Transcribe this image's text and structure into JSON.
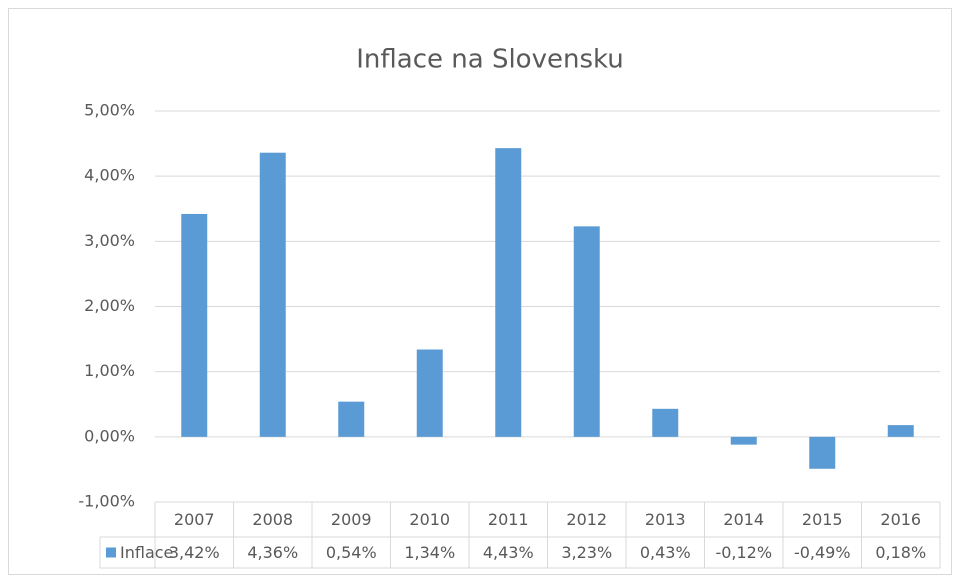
{
  "chart_data": {
    "type": "bar",
    "title": "Inflace na Slovensku",
    "categories": [
      "2007",
      "2008",
      "2009",
      "2010",
      "2011",
      "2012",
      "2013",
      "2014",
      "2015",
      "2016"
    ],
    "series": [
      {
        "name": "Inflace",
        "color": "#5b9bd5",
        "values": [
          3.42,
          4.36,
          0.54,
          1.34,
          4.43,
          3.23,
          0.43,
          -0.12,
          -0.49,
          0.18
        ],
        "value_labels": [
          "3,42%",
          "4,36%",
          "0,54%",
          "1,34%",
          "4,43%",
          "3,23%",
          "0,43%",
          "-0,12%",
          "-0,49%",
          "0,18%"
        ]
      }
    ],
    "ylim": [
      -1,
      5
    ],
    "yticks": [
      {
        "value": -1,
        "label": "-1,00%"
      },
      {
        "value": 0,
        "label": "0,00%"
      },
      {
        "value": 1,
        "label": "1,00%"
      },
      {
        "value": 2,
        "label": "2,00%"
      },
      {
        "value": 3,
        "label": "3,00%"
      },
      {
        "value": 4,
        "label": "4,00%"
      },
      {
        "value": 5,
        "label": "5,00%"
      }
    ],
    "grid": true,
    "data_table": true
  }
}
